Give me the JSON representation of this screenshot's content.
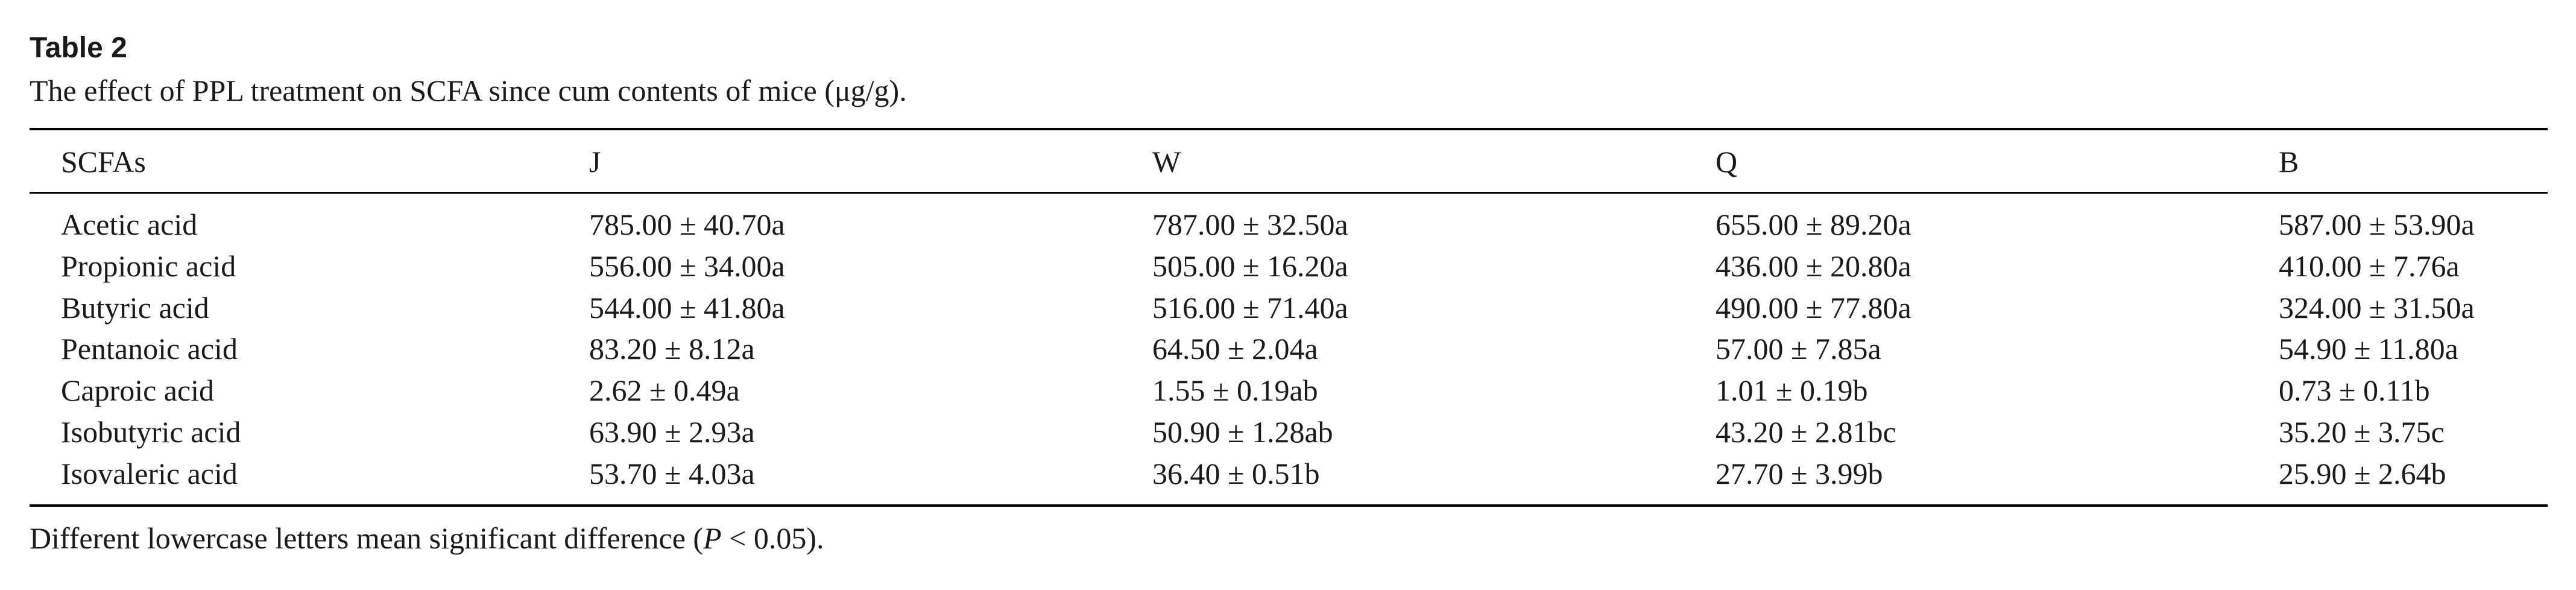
{
  "header": {
    "title": "Table 2",
    "caption": "The effect of PPL treatment on SCFA since cum contents of mice (μg/g)."
  },
  "table": {
    "columns": [
      "SCFAs",
      "J",
      "W",
      "Q",
      "B"
    ],
    "rows": [
      [
        "Acetic acid",
        "785.00 ± 40.70a",
        "787.00 ± 32.50a",
        "655.00 ± 89.20a",
        "587.00 ± 53.90a"
      ],
      [
        "Propionic acid",
        "556.00 ± 34.00a",
        "505.00 ± 16.20a",
        "436.00 ± 20.80a",
        "410.00 ± 7.76a"
      ],
      [
        "Butyric acid",
        "544.00 ± 41.80a",
        "516.00 ± 71.40a",
        "490.00 ± 77.80a",
        "324.00 ± 31.50a"
      ],
      [
        "Pentanoic acid",
        "83.20 ± 8.12a",
        "64.50 ± 2.04a",
        "57.00 ± 7.85a",
        "54.90 ± 11.80a"
      ],
      [
        "Caproic acid",
        "2.62 ± 0.49a",
        "1.55 ± 0.19ab",
        "1.01 ± 0.19b",
        "0.73 ± 0.11b"
      ],
      [
        "Isobutyric acid",
        "63.90 ± 2.93a",
        "50.90 ± 1.28ab",
        "43.20 ± 2.81bc",
        "35.20 ± 3.75c"
      ],
      [
        "Isovaleric acid",
        "53.70 ± 4.03a",
        "36.40 ± 0.51b",
        "27.70 ± 3.99b",
        "25.90 ± 2.64b"
      ]
    ]
  },
  "footnote": {
    "before": "Different lowercase letters mean significant difference (",
    "italic": "P",
    "after": " < 0.05)."
  }
}
